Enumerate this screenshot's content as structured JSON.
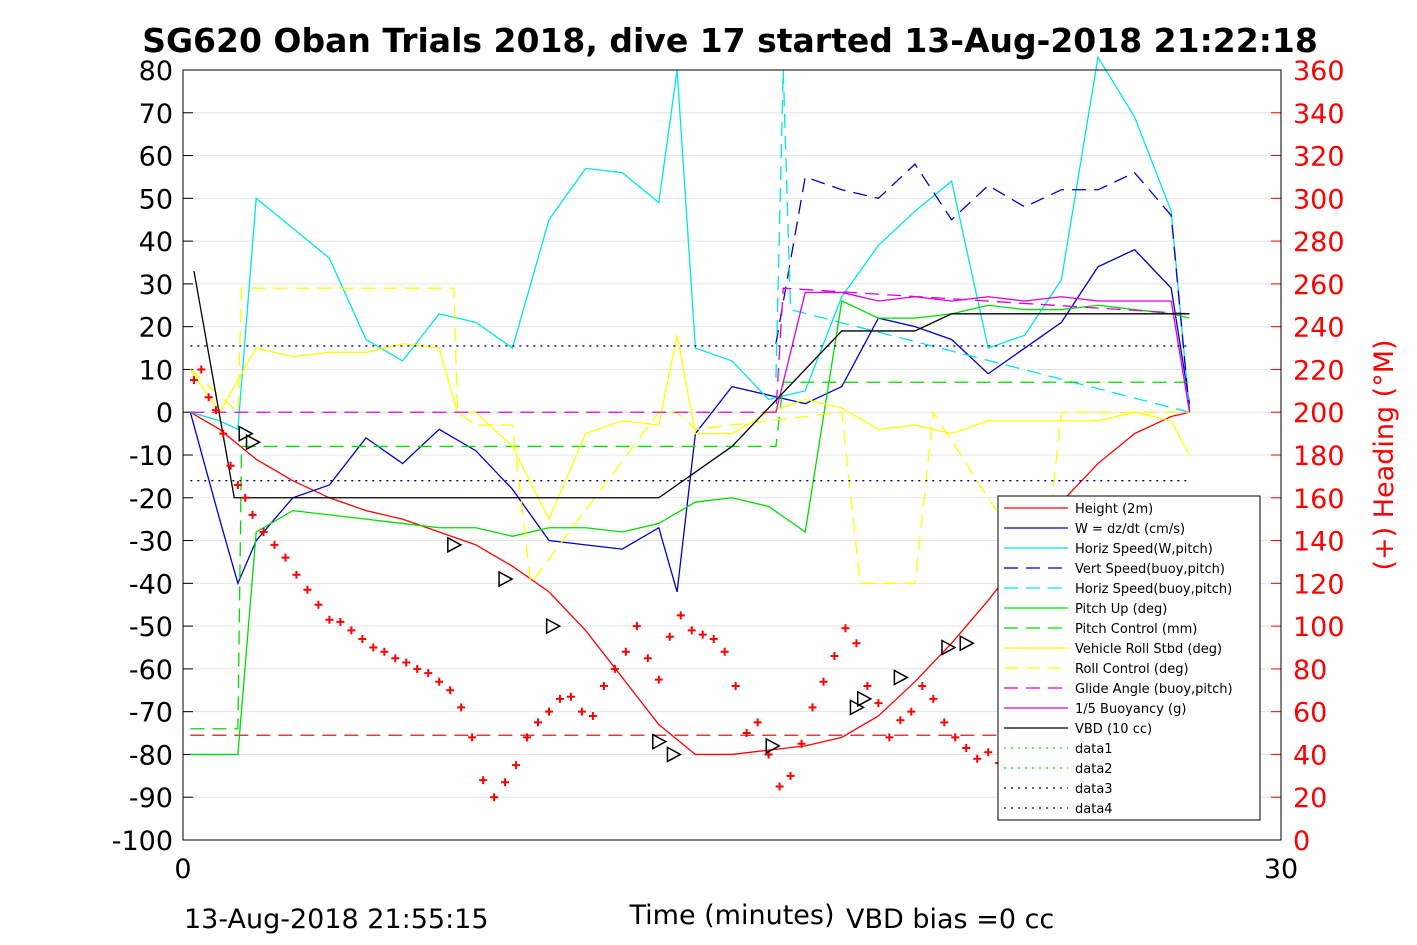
{
  "figure": {
    "title": "SG620 Oban Trials 2018, dive 17 started 13-Aug-2018 21:22:18",
    "footer_left": "13-Aug-2018 21:55:15",
    "footer_right": "VBD bias =0 cc"
  },
  "chart_data": {
    "type": "line",
    "title": "SG620 Oban Trials 2018, dive 17 started 13-Aug-2018 21:22:18",
    "xlabel": "Time (minutes)",
    "ylabel_left": "",
    "ylabel_right": "(+) Heading (°M)",
    "xlim": [
      0,
      30
    ],
    "ylim_left": [
      -100,
      80
    ],
    "ylim_right": [
      0,
      360
    ],
    "x_ticks": [
      "0",
      "30"
    ],
    "y_ticks_left": [
      "80",
      "70",
      "60",
      "50",
      "40",
      "30",
      "20",
      "10",
      "0",
      "-10",
      "-20",
      "-30",
      "-40",
      "-50",
      "-60",
      "-70",
      "-80",
      "-90",
      "-100"
    ],
    "y_ticks_right": [
      "360",
      "340",
      "320",
      "300",
      "280",
      "260",
      "240",
      "220",
      "200",
      "180",
      "160",
      "140",
      "120",
      "100",
      "80",
      "60",
      "40",
      "20",
      "0"
    ],
    "grid": "horizontal",
    "legend_position": "lower-right",
    "series": [
      {
        "name": "Height (2m)",
        "color": "#ff0000",
        "style": "solid",
        "axis": "left",
        "x": [
          0.2,
          1,
          2,
          3,
          4,
          5,
          6,
          7,
          8,
          9,
          10,
          11,
          12,
          13,
          14,
          15,
          16,
          17,
          18,
          19,
          20,
          21,
          22,
          23,
          24,
          25,
          26,
          27,
          27.5
        ],
        "y": [
          0,
          -4,
          -11,
          -16,
          -20,
          -23,
          -25,
          -28,
          -31,
          -36,
          -42,
          -51,
          -62,
          -73,
          -80,
          -80,
          -79,
          -78,
          -76,
          -71,
          -63,
          -54,
          -44,
          -33,
          -21,
          -12,
          -5,
          -1,
          0
        ]
      },
      {
        "name": "W = dz/dt (cm/s)",
        "color": "#0000cc",
        "style": "solid",
        "axis": "left",
        "x": [
          0.2,
          1,
          1.5,
          2,
          3,
          4,
          5,
          6,
          7,
          8,
          9,
          10,
          11,
          12,
          13,
          13.5,
          14,
          15,
          16,
          17,
          18,
          19,
          20,
          21,
          22,
          23,
          24,
          25,
          26,
          27,
          27.5
        ],
        "y": [
          0,
          -25,
          -40,
          -30,
          -20,
          -17,
          -6,
          -12,
          -4,
          -9,
          -18,
          -30,
          -31,
          -32,
          -27,
          -42,
          -5,
          6,
          4,
          2,
          6,
          22,
          20,
          17,
          9,
          15,
          21,
          34,
          38,
          29,
          2
        ]
      },
      {
        "name": "Horiz Speed(W,pitch)",
        "color": "#00e5e5",
        "style": "solid",
        "axis": "left",
        "x": [
          0.2,
          1,
          1.5,
          2,
          3,
          4,
          5,
          6,
          7,
          8,
          9,
          10,
          11,
          12,
          13,
          13.5,
          14,
          15,
          16,
          17,
          18,
          19,
          20,
          21,
          22,
          23,
          24,
          25,
          26,
          27,
          27.5
        ],
        "y": [
          0,
          -2,
          -4,
          50,
          43,
          36,
          17,
          12,
          23,
          21,
          15,
          45,
          57,
          56,
          49,
          80,
          15,
          12,
          3,
          5,
          27,
          39,
          47,
          54,
          15,
          18,
          31,
          83,
          69,
          47,
          0
        ]
      },
      {
        "name": "Vert Speed(buoy,pitch)",
        "color": "#0000cc",
        "style": "dashed",
        "axis": "left",
        "x": [
          16.2,
          17,
          18,
          19,
          20,
          21,
          22,
          23,
          24,
          25,
          26,
          27,
          27.5
        ],
        "y": [
          16,
          55,
          52,
          50,
          58,
          45,
          53,
          48,
          52,
          52,
          56,
          46,
          0
        ]
      },
      {
        "name": "Horiz Speed(buoy,pitch)",
        "color": "#00e5e5",
        "style": "dashed",
        "axis": "left",
        "x": [
          16.2,
          16.4,
          16.6,
          27.5
        ],
        "y": [
          8,
          80,
          24,
          0
        ]
      },
      {
        "name": "Pitch Up (deg)",
        "color": "#00dd00",
        "style": "solid",
        "axis": "left",
        "x": [
          0.2,
          1,
          1.5,
          2,
          3,
          4,
          5,
          6,
          7,
          8,
          9,
          10,
          11,
          12,
          13,
          14,
          15,
          16,
          17,
          18,
          19,
          20,
          21,
          22,
          23,
          24,
          25,
          26,
          27,
          27.5
        ],
        "y": [
          -80,
          -80,
          -80,
          -28,
          -23,
          -24,
          -25,
          -26,
          -27,
          -27,
          -29,
          -27,
          -27,
          -28,
          -26,
          -21,
          -20,
          -22,
          -28,
          26,
          22,
          22,
          23,
          25,
          24,
          24,
          25,
          24,
          23,
          22
        ]
      },
      {
        "name": "Pitch Control (mm)",
        "color": "#00dd00",
        "style": "dashed",
        "axis": "left",
        "x": [
          0.2,
          1.5,
          1.6,
          16.2,
          16.4,
          27.5
        ],
        "y": [
          -74,
          -74,
          -8,
          -8,
          7,
          7
        ]
      },
      {
        "name": "Vehicle Roll Stbd (deg)",
        "color": "#ffff00",
        "style": "solid",
        "axis": "left",
        "x": [
          0.2,
          1,
          2,
          3,
          4,
          5,
          6,
          7,
          7.5,
          8,
          9,
          10,
          11,
          12,
          13,
          13.5,
          14,
          15,
          16,
          17,
          18,
          19,
          20,
          21,
          22,
          23,
          24,
          25,
          26,
          27,
          27.5
        ],
        "y": [
          10,
          0,
          15,
          13,
          14,
          14,
          16,
          15,
          0,
          0,
          -8,
          -25,
          -5,
          -2,
          -3,
          18,
          -5,
          -5,
          0,
          3,
          1,
          -4,
          -3,
          -5,
          -2,
          -2,
          -2,
          -2,
          0,
          -2,
          -10
        ]
      },
      {
        "name": "Roll Control (deg)",
        "color": "#ffff00",
        "style": "dashed",
        "axis": "left",
        "x": [
          0.2,
          1.5,
          1.6,
          7.4,
          7.5,
          8,
          9,
          9.5,
          13,
          13.5,
          14,
          18,
          18.5,
          20,
          20.5,
          23.5,
          24,
          27.5
        ],
        "y": [
          10,
          0,
          29,
          29,
          0,
          -3,
          -3,
          -40,
          0,
          0,
          -4,
          0,
          -40,
          -40,
          0,
          -40,
          0,
          0
        ]
      },
      {
        "name": "Glide Angle (buoy,pitch)",
        "color": "#dd00dd",
        "style": "dashed",
        "axis": "left",
        "x": [
          0.2,
          16.2,
          16.4,
          27.5
        ],
        "y": [
          0,
          0,
          29,
          23
        ]
      },
      {
        "name": "1/5 Buoyancy (g)",
        "color": "#dd00dd",
        "style": "solid",
        "axis": "left",
        "x": [
          16.2,
          17,
          18,
          19,
          20,
          21,
          22,
          23,
          24,
          25,
          26,
          27,
          27.5
        ],
        "y": [
          0,
          28,
          28,
          26,
          27,
          26,
          27,
          26,
          27,
          26,
          26,
          26,
          0
        ]
      },
      {
        "name": "VBD (10 cc)",
        "color": "#000000",
        "style": "solid",
        "axis": "left",
        "x": [
          0.3,
          1.4,
          2,
          13,
          15,
          18,
          20,
          21,
          27.5
        ],
        "y": [
          33,
          -20,
          -20,
          -20,
          -8,
          19,
          19,
          23,
          23
        ]
      },
      {
        "name": "data1",
        "color": "#00dd00",
        "style": "dotted",
        "axis": "left",
        "x": [],
        "y": []
      },
      {
        "name": "data2",
        "color": "#00dd00",
        "style": "dotted",
        "axis": "left",
        "x": [],
        "y": []
      },
      {
        "name": "data3",
        "color": "#000080",
        "style": "dotted",
        "axis": "left",
        "x": [
          0.2,
          27.5
        ],
        "y": [
          -16,
          -16
        ]
      },
      {
        "name": "data4",
        "color": "#000080",
        "style": "dotted",
        "axis": "left",
        "x": [
          0.2,
          27.5
        ],
        "y": [
          15.5,
          15.5
        ]
      }
    ],
    "reference_line": {
      "color": "#cc0000",
      "style": "dashed",
      "axis": "left",
      "y": -75.5,
      "x": [
        0.2,
        27.5
      ]
    },
    "heading": {
      "name": "heading",
      "color": "#ff0000",
      "marker": "+",
      "axis": "right",
      "x": [
        0.3,
        0.5,
        0.7,
        0.9,
        1.1,
        1.3,
        1.5,
        1.7,
        1.9,
        2.2,
        2.5,
        2.8,
        3.1,
        3.4,
        3.7,
        4,
        4.3,
        4.6,
        4.9,
        5.2,
        5.5,
        5.8,
        6.1,
        6.4,
        6.7,
        7,
        7.3,
        7.6,
        7.9,
        8.2,
        8.5,
        8.8,
        9.1,
        9.4,
        9.7,
        10,
        10.3,
        10.6,
        10.9,
        11.2,
        11.5,
        11.8,
        12.1,
        12.4,
        12.7,
        13,
        13.3,
        13.6,
        13.9,
        14.2,
        14.5,
        14.8,
        15.1,
        15.4,
        15.7,
        16,
        16.3,
        16.6,
        16.9,
        17.2,
        17.5,
        17.8,
        18.1,
        18.4,
        18.7,
        19,
        19.3,
        19.6,
        19.9,
        20.2,
        20.5,
        20.8,
        21.1,
        21.4,
        21.7,
        22,
        22.3
      ],
      "y": [
        215,
        220,
        207,
        201,
        190,
        175,
        166,
        160,
        152,
        144,
        138,
        132,
        124,
        117,
        110,
        103,
        102,
        98,
        94,
        90,
        88,
        85,
        83,
        80,
        78,
        74,
        70,
        62,
        48,
        28,
        20,
        27,
        35,
        48,
        55,
        60,
        66,
        67,
        60,
        58,
        72,
        80,
        88,
        100,
        85,
        75,
        95,
        105,
        98,
        96,
        94,
        88,
        72,
        50,
        55,
        40,
        25,
        30,
        45,
        62,
        74,
        86,
        99,
        92,
        72,
        64,
        48,
        56,
        60,
        72,
        66,
        55,
        48,
        43,
        38,
        41,
        36
      ]
    },
    "position_markers": {
      "name": "position",
      "shape": "triangle",
      "axis": "left",
      "x": [
        1.7,
        1.9,
        7.4,
        8.8,
        10.1,
        13,
        13.4,
        16.1,
        18.4,
        18.6,
        19.6,
        20.9,
        21.4
      ],
      "y": [
        -5,
        -7,
        -31,
        -39,
        -50,
        -77,
        -80,
        -78,
        -69,
        -67,
        -62,
        -55,
        -54
      ]
    }
  }
}
